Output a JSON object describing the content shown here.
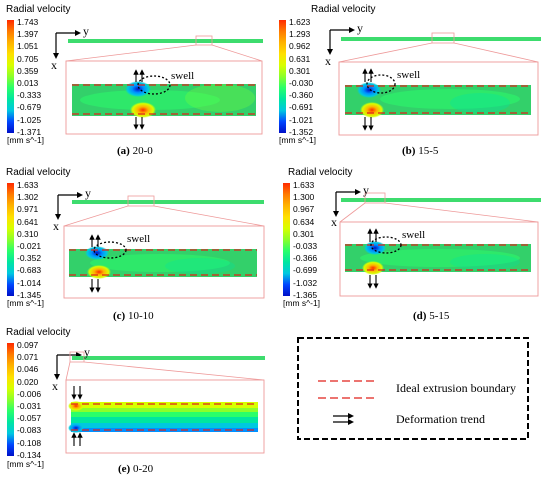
{
  "colorbar_title": "Radial velocity",
  "unit_label": "[mm s^-1]",
  "axis_y": "y",
  "axis_x": "x",
  "swell_label": "swell",
  "colormap": [
    "#ff2a00",
    "#ff7a00",
    "#ffb300",
    "#ffe000",
    "#d8ff00",
    "#8cff2a",
    "#2aff6a",
    "#00e6a0",
    "#00c8e0",
    "#0090ff",
    "#0046ff",
    "#0010c8"
  ],
  "panels": [
    {
      "id": "a",
      "caption_letter": "(a)",
      "caption_text": " 20-0",
      "ticks": [
        "1.743",
        "1.397",
        "1.051",
        "0.705",
        "0.359",
        "0.013",
        "-0.333",
        "-0.679",
        "-1.025",
        "-1.371"
      ]
    },
    {
      "id": "b",
      "caption_letter": "(b)",
      "caption_text": " 15-5",
      "ticks": [
        "1.623",
        "1.293",
        "0.962",
        "0.631",
        "0.301",
        "-0.030",
        "-0.360",
        "-0.691",
        "-1.021",
        "-1.352"
      ]
    },
    {
      "id": "c",
      "caption_letter": "(c)",
      "caption_text": " 10-10",
      "ticks": [
        "1.633",
        "1.302",
        "0.971",
        "0.641",
        "0.310",
        "-0.021",
        "-0.352",
        "-0.683",
        "-1.014",
        "-1.345"
      ]
    },
    {
      "id": "d",
      "caption_letter": "(d)",
      "caption_text": " 5-15",
      "ticks": [
        "1.633",
        "1.300",
        "0.967",
        "0.634",
        "0.301",
        "-0.033",
        "-0.366",
        "-0.699",
        "-1.032",
        "-1.365"
      ]
    },
    {
      "id": "e",
      "caption_letter": "(e)",
      "caption_text": " 0-20",
      "ticks": [
        "0.097",
        "0.071",
        "0.046",
        "0.020",
        "-0.006",
        "-0.031",
        "-0.057",
        "-0.083",
        "-0.108",
        "-0.134"
      ]
    }
  ],
  "legend": {
    "boundary_label": "Ideal extrusion boundary",
    "trend_label": "Deformation trend",
    "boundary_color": "#e0201a"
  }
}
